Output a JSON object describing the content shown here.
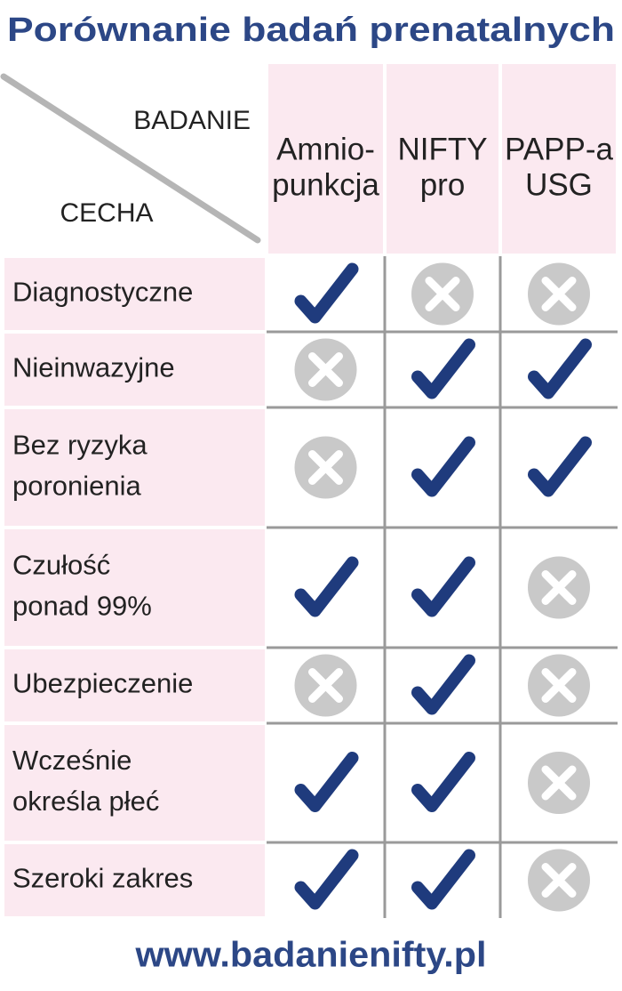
{
  "title": "Porównanie badań prenatalnych",
  "header": {
    "top": "BADANIE",
    "bottom": "CECHA"
  },
  "columns": [
    [
      "Amnio-",
      "punkcja"
    ],
    [
      "NIFTY",
      "pro"
    ],
    [
      "PAPP-a",
      "USG"
    ]
  ],
  "rows": [
    {
      "label": [
        "Diagnostyczne"
      ],
      "cells": [
        true,
        false,
        false
      ]
    },
    {
      "label": [
        "Nieinwazyjne"
      ],
      "cells": [
        false,
        true,
        true
      ]
    },
    {
      "label": [
        "Bez ryzyka",
        "poronienia"
      ],
      "cells": [
        false,
        true,
        true
      ]
    },
    {
      "label": [
        "Czułość",
        "ponad 99%"
      ],
      "cells": [
        true,
        true,
        false
      ]
    },
    {
      "label": [
        "Ubezpieczenie"
      ],
      "cells": [
        false,
        true,
        false
      ]
    },
    {
      "label": [
        "Wcześnie",
        "określa płeć"
      ],
      "cells": [
        true,
        true,
        false
      ]
    },
    {
      "label": [
        "Szeroki zakres"
      ],
      "cells": [
        true,
        true,
        false
      ]
    }
  ],
  "footer": "www.badanienifty.pl"
}
